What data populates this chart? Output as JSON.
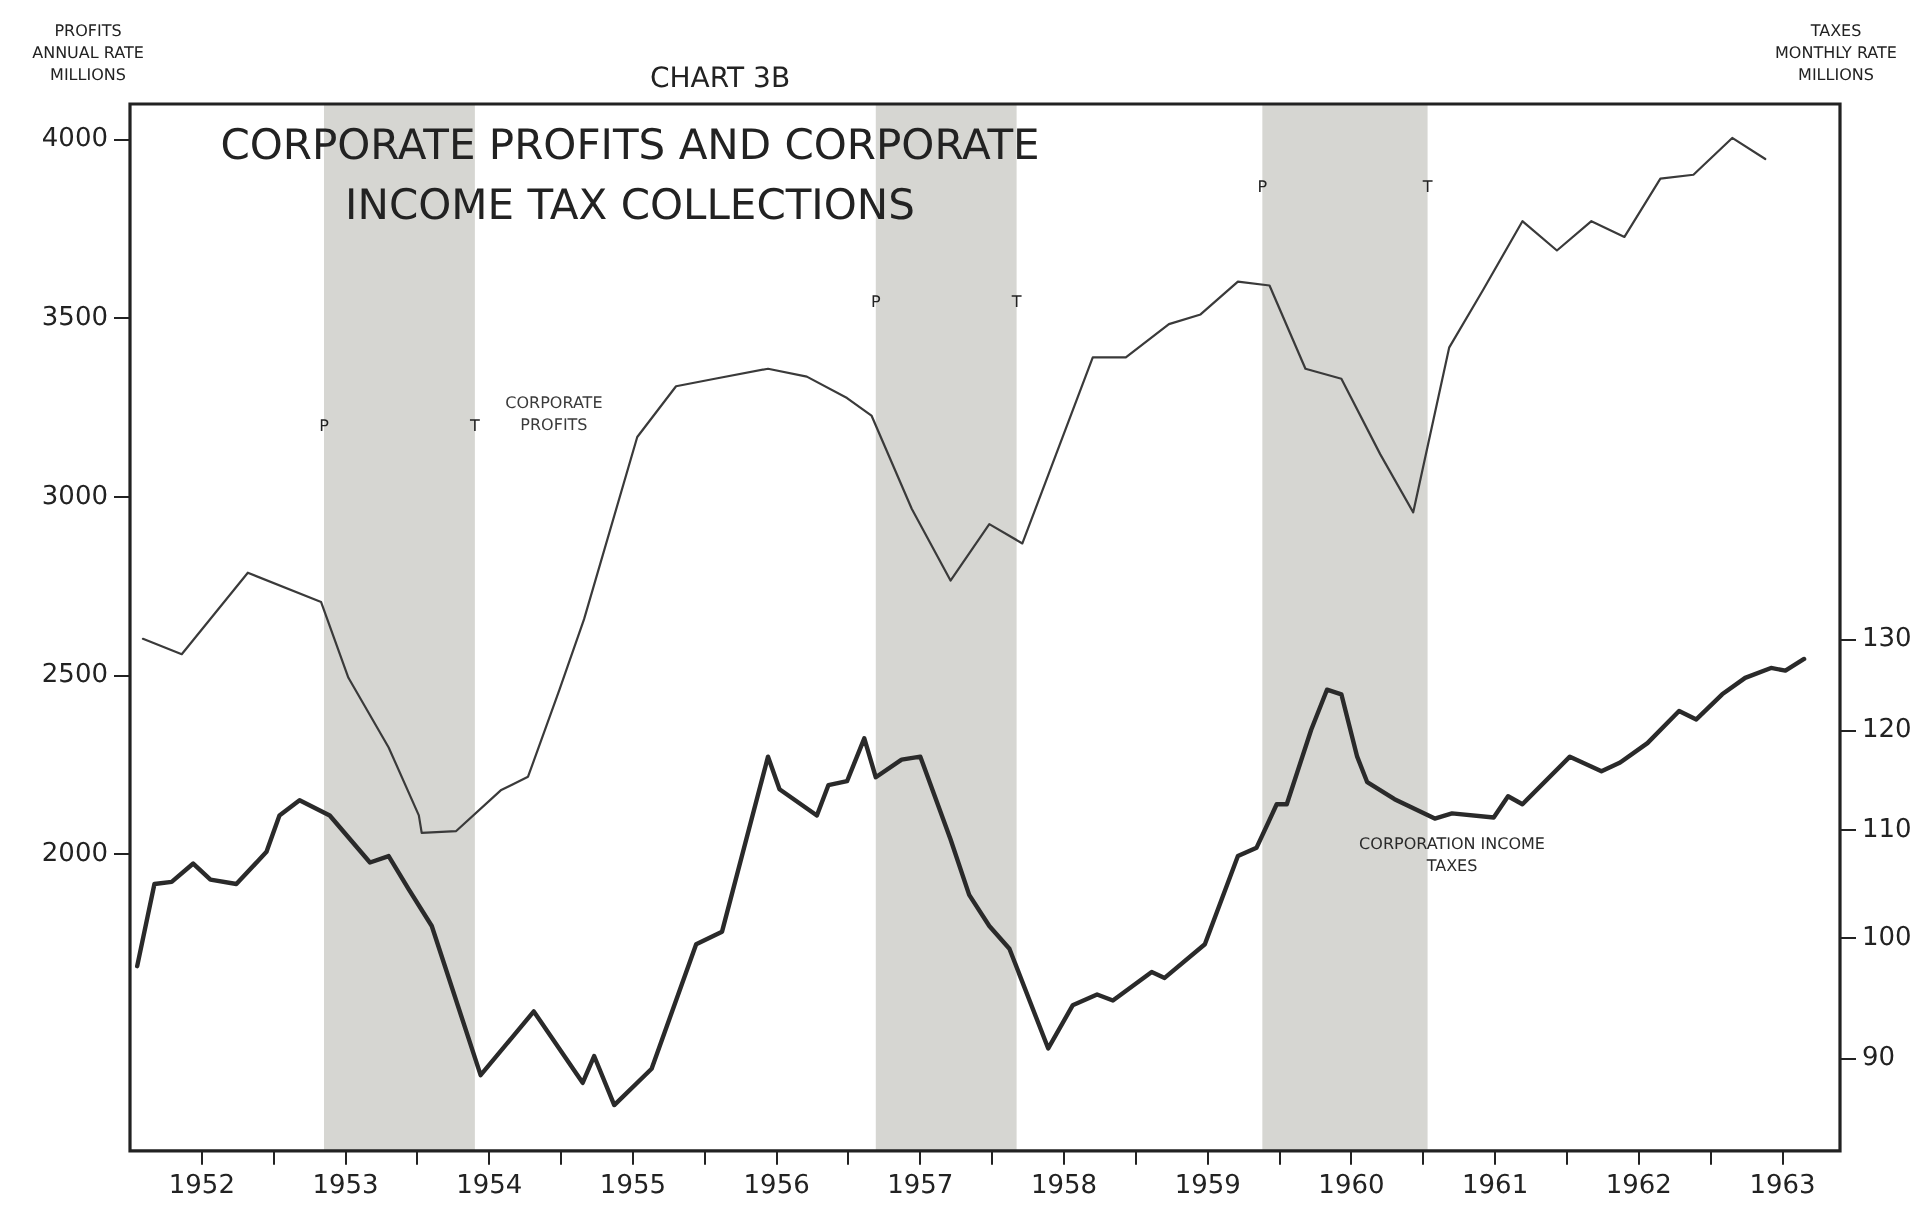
{
  "chart_data": {
    "type": "line",
    "title": "CORPORATE PROFITS AND CORPORATE\nINCOME TAX COLLECTIONS",
    "subtitle": "CHART 3B",
    "ylabel": "PROFITS\nANNUAL RATE\nMILLIONS",
    "y2label": "TAXES\nMONTHLY RATE\nMILLIONS",
    "xlim": [
      1952,
      1963.9
    ],
    "xticks": [
      {
        "value": 1952.5,
        "label": "1952"
      },
      {
        "value": 1953,
        "label": null
      },
      {
        "value": 1953.5,
        "label": "1953"
      },
      {
        "value": 1954,
        "label": null
      },
      {
        "value": 1954.5,
        "label": "1954"
      },
      {
        "value": 1955,
        "label": null
      },
      {
        "value": 1955.5,
        "label": "1955"
      },
      {
        "value": 1956,
        "label": null
      },
      {
        "value": 1956.5,
        "label": "1956"
      },
      {
        "value": 1957,
        "label": null
      },
      {
        "value": 1957.5,
        "label": "1957"
      },
      {
        "value": 1958,
        "label": null
      },
      {
        "value": 1958.5,
        "label": "1958"
      },
      {
        "value": 1959,
        "label": null
      },
      {
        "value": 1959.5,
        "label": "1959"
      },
      {
        "value": 1960,
        "label": null
      },
      {
        "value": 1960.5,
        "label": "1960"
      },
      {
        "value": 1961,
        "label": null
      },
      {
        "value": 1961.5,
        "label": "1961"
      },
      {
        "value": 1962,
        "label": null
      },
      {
        "value": 1962.5,
        "label": "1962"
      },
      {
        "value": 1963,
        "label": null
      },
      {
        "value": 1963.5,
        "label": "1963"
      }
    ],
    "ylim": [
      1170,
      4100
    ],
    "yticks": [
      2000,
      2500,
      3000,
      3500,
      4000
    ],
    "y2lim": [
      83,
      208
    ],
    "y2ticks": [
      90,
      100,
      110,
      120,
      130
    ],
    "log": "y2",
    "grid": false,
    "legend": false,
    "marker": "none",
    "line_style": "solid",
    "series": [
      {
        "name": "CORPORATE PROFITS",
        "color": "#3a3a3a",
        "x": [
          1952.09,
          1952.36,
          1952.82,
          1953.33,
          1953.52,
          1953.8,
          1954.01,
          1954.03,
          1954.27,
          1954.58,
          1954.77,
          1954.99,
          1955.16,
          1955.53,
          1955.8,
          1956.07,
          1956.44,
          1956.71,
          1956.99,
          1957.16,
          1957.44,
          1957.71,
          1957.98,
          1958.21,
          1958.7,
          1958.93,
          1959.23,
          1959.45,
          1959.71,
          1959.93,
          1960.18,
          1960.43,
          1960.7,
          1960.93,
          1961.18,
          1961.42,
          1961.69,
          1961.93,
          1962.17,
          1962.4,
          1962.65,
          1962.88,
          1963.15,
          1963.38
        ],
        "values": [
          2603,
          2560,
          2788,
          2706,
          2494,
          2299,
          2109,
          2060,
          2065,
          2179,
          2217,
          2462,
          2658,
          3168,
          3310,
          3331,
          3359,
          3337,
          3277,
          3228,
          2967,
          2766,
          2924,
          2870,
          3391,
          3391,
          3484,
          3511,
          3603,
          3592,
          3359,
          3331,
          3120,
          2957,
          3418,
          3582,
          3772,
          3690,
          3772,
          3728,
          3891,
          3902,
          4005,
          3946
        ]
      },
      {
        "name": "CORPORATION INCOME TAXES",
        "color": "#2a2a2a",
        "axis": "y2",
        "x": [
          1952.05,
          1952.17,
          1952.29,
          1952.44,
          1952.56,
          1952.74,
          1952.95,
          1953.04,
          1953.18,
          1953.39,
          1953.67,
          1953.8,
          1953.94,
          1954.1,
          1954.44,
          1954.81,
          1955.15,
          1955.23,
          1955.37,
          1955.63,
          1955.94,
          1956.12,
          1956.44,
          1956.52,
          1956.78,
          1956.86,
          1956.99,
          1957.11,
          1957.19,
          1957.37,
          1957.5,
          1957.71,
          1957.84,
          1957.98,
          1958.12,
          1958.39,
          1958.56,
          1958.73,
          1958.84,
          1959.11,
          1959.2,
          1959.48,
          1959.71,
          1959.84,
          1959.98,
          1960.05,
          1960.22,
          1960.33,
          1960.43,
          1960.54,
          1960.61,
          1960.8,
          1961.08,
          1961.2,
          1961.49,
          1961.59,
          1961.69,
          1962.02,
          1962.24,
          1962.37,
          1962.56,
          1962.78,
          1962.9,
          1963.08,
          1963.24,
          1963.42,
          1963.52,
          1963.65
        ],
        "values": [
          97.6,
          104.9,
          105.1,
          106.8,
          105.3,
          104.9,
          107.9,
          111.4,
          112.9,
          111.4,
          106.9,
          107.5,
          104.4,
          101.1,
          88.7,
          93.8,
          88.1,
          90.2,
          86.4,
          89.2,
          99.5,
          100.6,
          117.3,
          114,
          111.4,
          114.4,
          114.8,
          119.2,
          115.2,
          117,
          117.3,
          109.1,
          103.9,
          101.1,
          99.1,
          90.8,
          94.3,
          95.2,
          94.7,
          97.1,
          96.6,
          99.5,
          107.5,
          108.3,
          112.5,
          112.5,
          120.1,
          124.4,
          123.9,
          117.3,
          114.7,
          113,
          111.1,
          111.6,
          111.2,
          113.3,
          112.5,
          117.3,
          115.8,
          116.7,
          118.7,
          122.1,
          121.2,
          123.9,
          125.7,
          126.8,
          126.5,
          127.8
        ]
      }
    ],
    "bands": [
      {
        "axis": "x",
        "from": 1953.35,
        "to": 1954.4,
        "color": "#d6d6d2"
      },
      {
        "axis": "x",
        "from": 1957.19,
        "to": 1958.17,
        "color": "#d6d6d2"
      },
      {
        "axis": "x",
        "from": 1959.88,
        "to": 1961.03,
        "color": "#d6d6d2"
      }
    ],
    "annotations": [
      {
        "text": "P",
        "x": 1953.35,
        "y": 3152
      },
      {
        "text": "T",
        "x": 1954.4,
        "y": 3152
      },
      {
        "text": "P",
        "x": 1957.19,
        "y": 3500
      },
      {
        "text": "T",
        "x": 1958.17,
        "y": 3500
      },
      {
        "text": "P",
        "x": 1959.88,
        "y": 3821
      },
      {
        "text": "T",
        "x": 1961.03,
        "y": 3821
      }
    ]
  }
}
